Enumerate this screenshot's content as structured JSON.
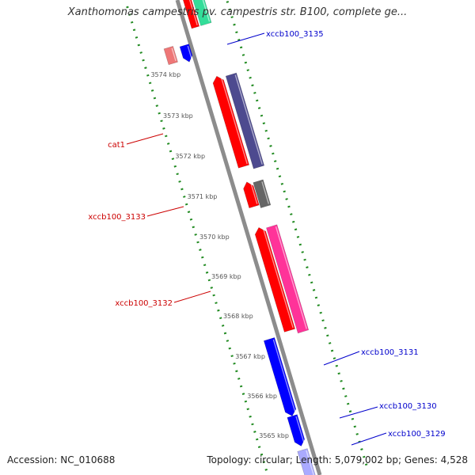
{
  "title": "Xanthomonas campestris pv. campestris str. B100, complete ge...",
  "footer": {
    "accession": "Accession: NC_010688",
    "stats": "Topology: circular; Length: 5,079,002 bp; Genes: 4,528"
  },
  "colors": {
    "backbone": "#8c8c8c",
    "ruler_dots": "#228b22",
    "ticks": "#555555",
    "label_forward": "#0000cc",
    "label_reverse": "#cc0000",
    "cds_red": "#ff0000",
    "cds_pink": "#ff3399",
    "cds_navy": "#4d4a8f",
    "cds_gray": "#666666",
    "cds_blue": "#0000ff",
    "cds_salmon": "#ee7777",
    "cds_teal": "#33dd99"
  },
  "diagram": {
    "ruler_unit": "kbp",
    "ticks": [
      {
        "kbp": 3574,
        "label": "3574 kbp"
      },
      {
        "kbp": 3573,
        "label": "3573 kbp"
      },
      {
        "kbp": 3572,
        "label": "3572 kbp"
      },
      {
        "kbp": 3571,
        "label": "3571 kbp"
      },
      {
        "kbp": 3570,
        "label": "3570 kbp"
      },
      {
        "kbp": 3569,
        "label": "3569 kbp"
      },
      {
        "kbp": 3568,
        "label": "3568 kbp"
      },
      {
        "kbp": 3567,
        "label": "3567 kbp"
      },
      {
        "kbp": 3566,
        "label": "3566 kbp"
      },
      {
        "kbp": 3565,
        "label": "3565 kbp"
      }
    ],
    "genes": [
      {
        "name": "cat1",
        "strand": "reverse"
      },
      {
        "name": "xccb100_3133",
        "strand": "reverse"
      },
      {
        "name": "xccb100_3132",
        "strand": "reverse"
      },
      {
        "name": "xccb100_3135",
        "strand": "forward"
      },
      {
        "name": "xccb100_3131",
        "strand": "forward"
      },
      {
        "name": "xccb100_3130",
        "strand": "forward"
      },
      {
        "name": "xccb100_3129",
        "strand": "forward"
      }
    ]
  }
}
